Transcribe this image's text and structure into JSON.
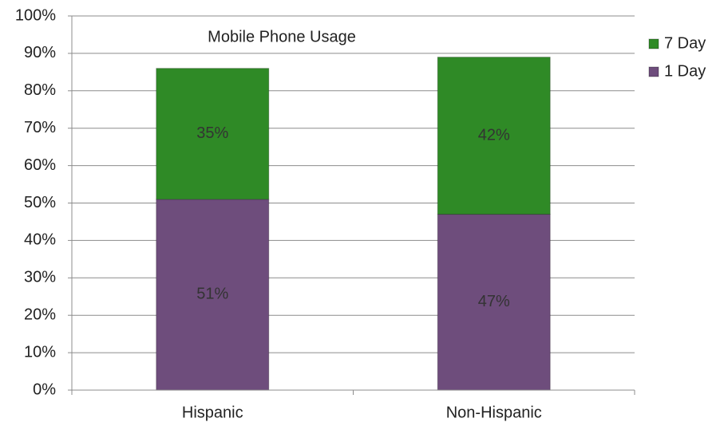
{
  "chart_data": {
    "type": "stacked_bar",
    "title": "Mobile Phone Usage",
    "categories": [
      "Hispanic",
      "Non-Hispanic"
    ],
    "series": [
      {
        "name": "1 Day",
        "color": "#6e4d7c",
        "values": [
          51,
          47
        ],
        "value_labels": [
          "51%",
          "47%"
        ]
      },
      {
        "name": "7 Day",
        "color": "#2f8a26",
        "values": [
          35,
          42
        ],
        "value_labels": [
          "35%",
          "42%"
        ]
      }
    ],
    "ylim": [
      0,
      100
    ],
    "yticks": [
      {
        "value": 0,
        "label": "0%"
      },
      {
        "value": 10,
        "label": "10%"
      },
      {
        "value": 20,
        "label": "20%"
      },
      {
        "value": 30,
        "label": "30%"
      },
      {
        "value": 40,
        "label": "40%"
      },
      {
        "value": 50,
        "label": "50%"
      },
      {
        "value": 60,
        "label": "60%"
      },
      {
        "value": 70,
        "label": "70%"
      },
      {
        "value": 80,
        "label": "80%"
      },
      {
        "value": 90,
        "label": "90%"
      },
      {
        "value": 100,
        "label": "100%"
      }
    ],
    "grid": true,
    "legend": "right"
  }
}
